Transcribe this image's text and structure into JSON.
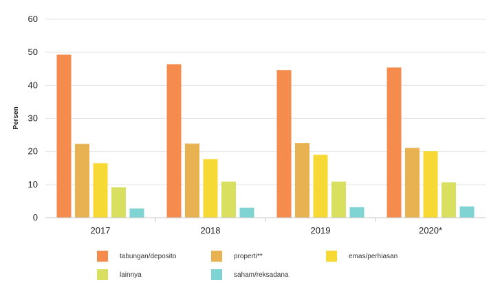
{
  "chart_data": {
    "type": "bar",
    "title": "",
    "xlabel": "",
    "ylabel": "Persen",
    "ylim": [
      0,
      60
    ],
    "yticks": [
      0,
      10,
      20,
      30,
      40,
      50,
      60
    ],
    "grid": true,
    "legend_position": "bottom",
    "categories": [
      "2017",
      "2018",
      "2019",
      "2020*"
    ],
    "series": [
      {
        "name": "tabungan/deposito",
        "color": "#f58b4c",
        "values": [
          49.3,
          46.4,
          44.6,
          45.4
        ]
      },
      {
        "name": "properti**",
        "color": "#e8b152",
        "values": [
          22.3,
          22.4,
          22.6,
          21.1
        ]
      },
      {
        "name": "emas/perhiasan",
        "color": "#f7d935",
        "values": [
          16.5,
          17.7,
          19.0,
          20.1
        ]
      },
      {
        "name": "lainnya",
        "color": "#d9e05f",
        "values": [
          9.2,
          10.9,
          10.9,
          10.7
        ]
      },
      {
        "name": "saham/reksadana",
        "color": "#7fd3d3",
        "values": [
          2.8,
          3.0,
          3.2,
          3.4
        ]
      }
    ]
  }
}
